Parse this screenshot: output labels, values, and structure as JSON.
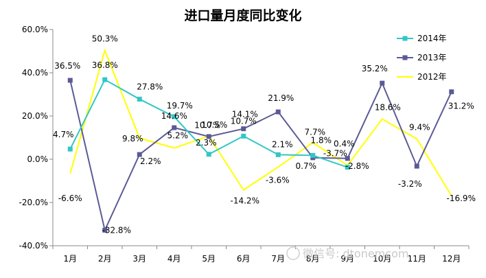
{
  "chart_data": {
    "type": "line",
    "title": "进口量月度同比变化",
    "xlabel": "",
    "ylabel": "",
    "categories": [
      "1月",
      "2月",
      "3月",
      "4月",
      "5月",
      "6月",
      "7月",
      "8月",
      "9月",
      "10月",
      "11月",
      "12月"
    ],
    "ylim": [
      -40,
      60
    ],
    "yticks": [
      "-40.0%",
      "-20.0%",
      "0.0%",
      "20.0%",
      "40.0%",
      "60.0%"
    ],
    "grid": false,
    "legend": "top-right",
    "series": [
      {
        "name": "2014年",
        "color": "#33c6c6",
        "marker": "square",
        "values": [
          4.7,
          36.8,
          27.8,
          19.7,
          2.3,
          10.7,
          2.1,
          1.8,
          -3.7,
          null,
          null,
          null
        ],
        "labels": [
          "4.7%",
          "36.8%",
          "27.8%",
          "19.7%",
          "2.3%",
          "10.7%",
          "2.1%",
          "1.8%",
          "-3.7%",
          null,
          null,
          null
        ]
      },
      {
        "name": "2013年",
        "color": "#5b5a95",
        "marker": "square",
        "values": [
          36.5,
          -32.8,
          2.2,
          14.6,
          10.5,
          14.1,
          21.9,
          0.7,
          0.4,
          35.2,
          -3.2,
          31.2
        ],
        "labels": [
          "36.5%",
          "-32.8%",
          "2.2%",
          "14.6%",
          "10.5%",
          "14.1%",
          "21.9%",
          "0.7%",
          "0.4%",
          "35.2%",
          "-3.2%",
          "31.2%"
        ]
      },
      {
        "name": "2012年",
        "color": "#ffff00",
        "marker": "none",
        "values": [
          -6.6,
          50.3,
          9.8,
          5.2,
          10.7,
          -14.2,
          -3.6,
          7.7,
          -2.8,
          18.6,
          9.4,
          -16.9
        ],
        "labels": [
          "-6.6%",
          "50.3%",
          "9.8%",
          "5.2%",
          "10.7%",
          "-14.2%",
          "-3.6%",
          "7.7%",
          "-2.8%",
          "18.6%",
          "9.4%",
          "-16.9%"
        ]
      }
    ]
  },
  "watermark": "微信号: dtonemcom"
}
